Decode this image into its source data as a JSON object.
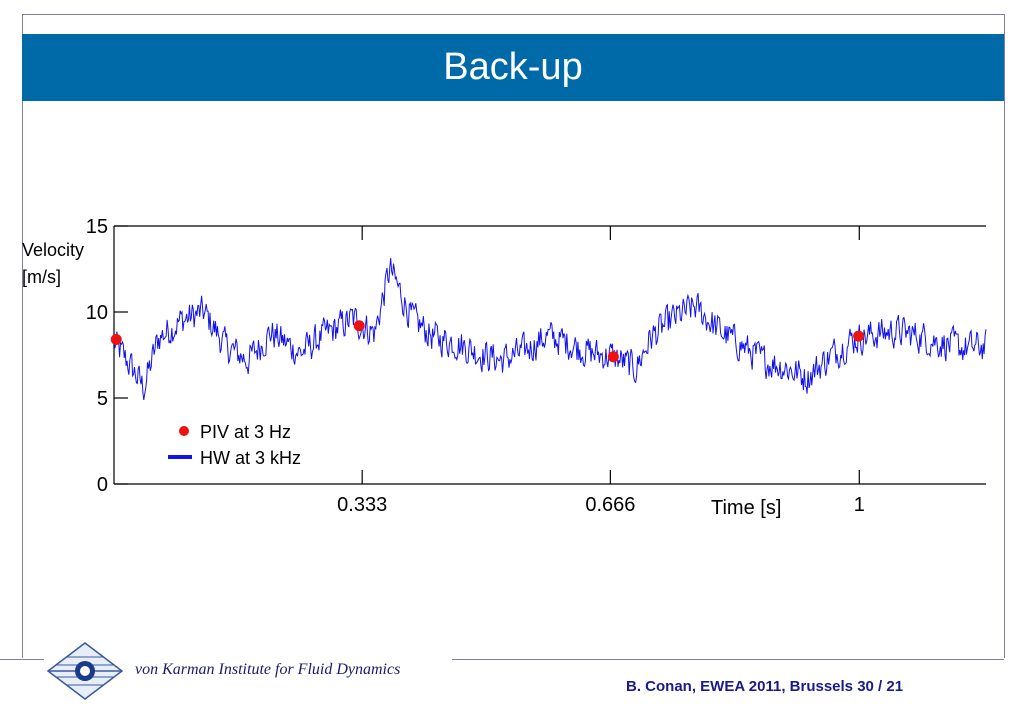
{
  "slide": {
    "title": "Back-up",
    "footer_institute": "von Karman Institute for Fluid Dynamics",
    "footer_reference": "B. Conan, EWEA 2011, Brussels  30 / 21"
  },
  "chart_data": {
    "type": "line",
    "title": "",
    "ylabel_line1": "Velocity",
    "ylabel_line2": "[m/s]",
    "xlabel": "Time [s]",
    "xlim": [
      0,
      1.17
    ],
    "ylim": [
      0,
      15
    ],
    "yticks": [
      0,
      5,
      10,
      15
    ],
    "xticks": [
      {
        "value": 0.333,
        "label": "0.333"
      },
      {
        "value": 0.666,
        "label": "0.666"
      },
      {
        "value": 1.0,
        "label": "1"
      }
    ],
    "grid": false,
    "legend_position": "bottom-left",
    "colors": {
      "hw": "#1111ee",
      "piv": "#ee1111"
    },
    "series": [
      {
        "name": "PIV at 3 Hz",
        "kind": "scatter",
        "x": [
          0.003,
          0.329,
          0.67,
          0.999
        ],
        "y": [
          8.4,
          9.2,
          7.4,
          8.6
        ]
      },
      {
        "name": "HW at 3 kHz",
        "kind": "line",
        "samples_per_unit": 800,
        "x_range": [
          0,
          1.17
        ],
        "y_envelope": [
          [
            0.0,
            8.2
          ],
          [
            0.02,
            7.0
          ],
          [
            0.04,
            5.6
          ],
          [
            0.06,
            8.5
          ],
          [
            0.09,
            9.5
          ],
          [
            0.12,
            10.0
          ],
          [
            0.15,
            8.0
          ],
          [
            0.18,
            7.2
          ],
          [
            0.21,
            8.8
          ],
          [
            0.25,
            7.6
          ],
          [
            0.28,
            8.6
          ],
          [
            0.32,
            9.6
          ],
          [
            0.35,
            8.8
          ],
          [
            0.37,
            12.5
          ],
          [
            0.4,
            9.6
          ],
          [
            0.43,
            8.5
          ],
          [
            0.46,
            8.2
          ],
          [
            0.49,
            7.6
          ],
          [
            0.52,
            7.2
          ],
          [
            0.55,
            7.7
          ],
          [
            0.58,
            8.6
          ],
          [
            0.61,
            8.2
          ],
          [
            0.64,
            7.6
          ],
          [
            0.67,
            7.4
          ],
          [
            0.7,
            6.7
          ],
          [
            0.72,
            8.5
          ],
          [
            0.75,
            9.6
          ],
          [
            0.78,
            10.3
          ],
          [
            0.81,
            9.0
          ],
          [
            0.84,
            8.1
          ],
          [
            0.87,
            7.2
          ],
          [
            0.9,
            6.8
          ],
          [
            0.93,
            6.2
          ],
          [
            0.96,
            7.4
          ],
          [
            0.99,
            8.4
          ],
          [
            1.02,
            8.7
          ],
          [
            1.05,
            8.9
          ],
          [
            1.08,
            8.6
          ],
          [
            1.11,
            8.2
          ],
          [
            1.14,
            7.9
          ],
          [
            1.17,
            8.0
          ]
        ],
        "noise_amplitude": 1.3
      }
    ]
  }
}
